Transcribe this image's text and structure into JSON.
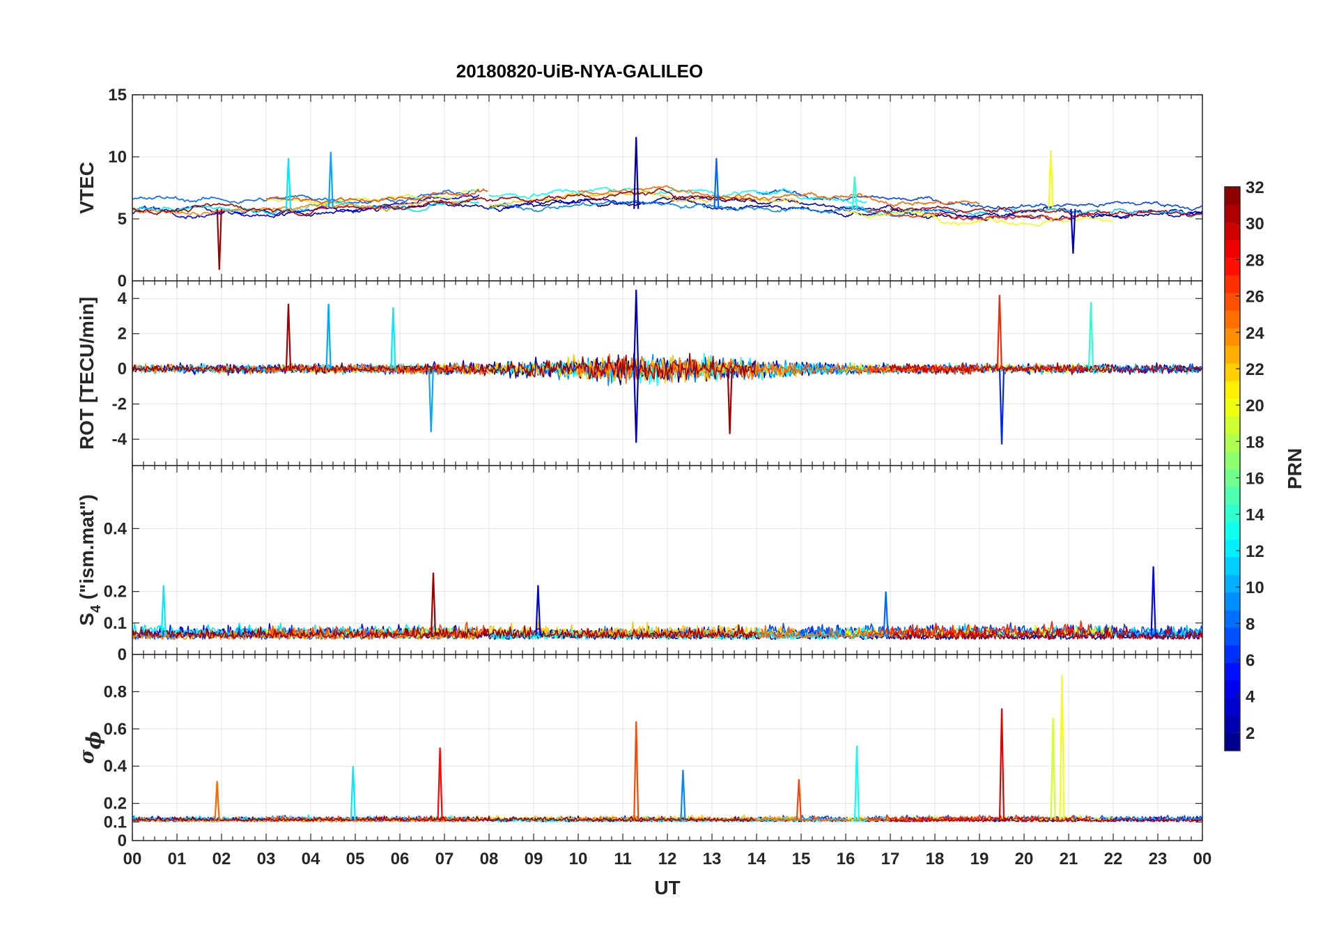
{
  "chart_data": {
    "type": "line",
    "title": "20180820-UiB-NYA-GALILEO",
    "xlabel": "UT",
    "x_range_hours": [
      0,
      24
    ],
    "x_tick_labels": [
      "00",
      "01",
      "02",
      "03",
      "04",
      "05",
      "06",
      "07",
      "08",
      "09",
      "10",
      "11",
      "12",
      "13",
      "14",
      "15",
      "16",
      "17",
      "18",
      "19",
      "20",
      "21",
      "22",
      "23",
      "00"
    ],
    "grid": true,
    "panels": [
      {
        "name": "vtec",
        "ylabel": "VTEC",
        "ylim": [
          0,
          15
        ],
        "yticks": [
          0,
          5,
          10,
          15
        ],
        "ytick_labels": [
          "0",
          "5",
          "10",
          "15"
        ],
        "baseline": 5.8,
        "spread": 1.3,
        "spikes": [
          {
            "t": 1.95,
            "v": 0.9,
            "prn": 31
          },
          {
            "t": 3.5,
            "v": 9.9,
            "prn": 12
          },
          {
            "t": 4.45,
            "v": 10.4,
            "prn": 10
          },
          {
            "t": 11.3,
            "v": 11.6,
            "prn": 2
          },
          {
            "t": 13.1,
            "v": 9.9,
            "prn": 8
          },
          {
            "t": 16.2,
            "v": 8.4,
            "prn": 14
          },
          {
            "t": 20.6,
            "v": 10.5,
            "prn": 20
          },
          {
            "t": 21.1,
            "v": 2.2,
            "prn": 3
          }
        ]
      },
      {
        "name": "rot",
        "ylabel": "ROT [TECU/min]",
        "ylim": [
          -5.5,
          5
        ],
        "yticks": [
          -4,
          -2,
          0,
          2,
          4
        ],
        "ytick_labels": [
          "-4",
          "-2",
          "0",
          "2",
          "4"
        ],
        "baseline": 0,
        "spread": 0.4,
        "spikes": [
          {
            "t": 3.5,
            "v": 3.7,
            "prn": 31
          },
          {
            "t": 4.4,
            "v": 3.7,
            "prn": 10
          },
          {
            "t": 5.85,
            "v": 3.5,
            "prn": 12
          },
          {
            "t": 6.7,
            "v": -3.6,
            "prn": 10
          },
          {
            "t": 11.3,
            "v": 4.5,
            "prn": 3
          },
          {
            "t": 11.3,
            "v": -4.2,
            "prn": 3
          },
          {
            "t": 13.4,
            "v": -3.7,
            "prn": 31
          },
          {
            "t": 19.45,
            "v": 4.2,
            "prn": 27
          },
          {
            "t": 19.5,
            "v": -4.3,
            "prn": 6
          },
          {
            "t": 21.5,
            "v": 3.8,
            "prn": 14
          }
        ]
      },
      {
        "name": "s4",
        "ylabel": "S",
        "ylabel_subscript": "4",
        "ylabel_suffix": " (\"ism.mat\")",
        "ylim": [
          0,
          0.6
        ],
        "yticks": [
          0,
          0.1,
          0.2,
          0.4
        ],
        "ytick_labels": [
          "0",
          "0.1",
          "0.2",
          "0.4"
        ],
        "baseline": 0.06,
        "spread": 0.03,
        "spikes": [
          {
            "t": 0.7,
            "v": 0.22,
            "prn": 12
          },
          {
            "t": 6.75,
            "v": 0.26,
            "prn": 31
          },
          {
            "t": 9.1,
            "v": 0.22,
            "prn": 4
          },
          {
            "t": 16.9,
            "v": 0.2,
            "prn": 8
          },
          {
            "t": 22.9,
            "v": 0.28,
            "prn": 5
          }
        ]
      },
      {
        "name": "sigma-phi",
        "ylabel_symbol": "σ",
        "ylabel_subscript": "ϕ",
        "ylim": [
          0,
          1
        ],
        "yticks": [
          0,
          0.1,
          0.2,
          0.4,
          0.6,
          0.8
        ],
        "ytick_labels": [
          "0",
          "0.1",
          "0.2",
          "0.4",
          "0.6",
          "0.8"
        ],
        "baseline": 0.11,
        "spread": 0.02,
        "spikes": [
          {
            "t": 1.9,
            "v": 0.32,
            "prn": 25
          },
          {
            "t": 4.95,
            "v": 0.4,
            "prn": 12
          },
          {
            "t": 6.9,
            "v": 0.5,
            "prn": 28
          },
          {
            "t": 11.3,
            "v": 0.64,
            "prn": 26
          },
          {
            "t": 12.35,
            "v": 0.38,
            "prn": 9
          },
          {
            "t": 14.95,
            "v": 0.33,
            "prn": 26
          },
          {
            "t": 16.25,
            "v": 0.51,
            "prn": 13
          },
          {
            "t": 19.5,
            "v": 0.71,
            "prn": 29
          },
          {
            "t": 20.85,
            "v": 0.89,
            "prn": 20
          },
          {
            "t": 20.65,
            "v": 0.66,
            "prn": 19
          }
        ]
      }
    ],
    "colorbar": {
      "label": "PRN",
      "range": [
        1,
        32
      ],
      "tick_values": [
        2,
        4,
        6,
        8,
        10,
        12,
        14,
        16,
        18,
        20,
        22,
        24,
        26,
        28,
        30,
        32
      ],
      "tick_labels": [
        "2",
        "4",
        "6",
        "8",
        "10",
        "12",
        "14",
        "16",
        "18",
        "20",
        "22",
        "24",
        "26",
        "28",
        "30",
        "32"
      ],
      "colormap": "jet"
    },
    "satellite_series": [
      {
        "prn": 2,
        "t0": 8.0,
        "t1": 24.0
      },
      {
        "prn": 3,
        "t0": 0.0,
        "t1": 24.0
      },
      {
        "prn": 5,
        "t0": 0.0,
        "t1": 7.8
      },
      {
        "prn": 7,
        "t0": 14.0,
        "t1": 24.0
      },
      {
        "prn": 8,
        "t0": 0.0,
        "t1": 7.8
      },
      {
        "prn": 9,
        "t0": 8.0,
        "t1": 17.5
      },
      {
        "prn": 11,
        "t0": 16.0,
        "t1": 24.0
      },
      {
        "prn": 12,
        "t0": 0.0,
        "t1": 7.8
      },
      {
        "prn": 13,
        "t0": 8.0,
        "t1": 16.5
      },
      {
        "prn": 19,
        "t0": 3.0,
        "t1": 7.8
      },
      {
        "prn": 20,
        "t0": 16.0,
        "t1": 22.0
      },
      {
        "prn": 22,
        "t0": 8.0,
        "t1": 15.0
      },
      {
        "prn": 24,
        "t0": 0.0,
        "t1": 7.8
      },
      {
        "prn": 25,
        "t0": 10.0,
        "t1": 19.0
      },
      {
        "prn": 26,
        "t0": 3.0,
        "t1": 8.0
      },
      {
        "prn": 27,
        "t0": 16.5,
        "t1": 21.5
      },
      {
        "prn": 30,
        "t0": 17.0,
        "t1": 24.0
      },
      {
        "prn": 31,
        "t0": 0.0,
        "t1": 14.0
      }
    ]
  }
}
